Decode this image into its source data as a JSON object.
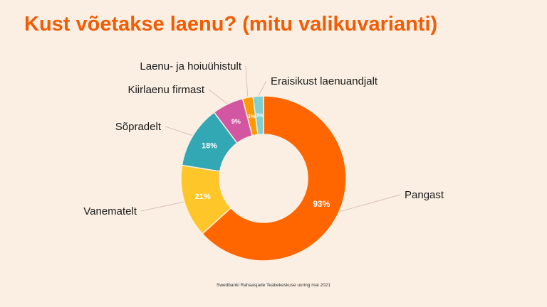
{
  "title": "Kust võetakse laenu? (mitu valikuvarianti)",
  "source": "Swedbanki Rahaasjade Teabekeskuse uuring mai 2021",
  "colors": {
    "background": "#fbefe3",
    "title": "#f25c05",
    "leader": "#d9c3b3"
  },
  "chart_data": {
    "type": "pie",
    "variant": "donut",
    "title": "Kust võetakse laenu? (mitu valikuvarianti)",
    "unit": "%",
    "slices": [
      {
        "label": "Pangast",
        "value": 93,
        "value_label": "93%",
        "color": "#ff6600"
      },
      {
        "label": "Vanematelt",
        "value": 21,
        "value_label": "21%",
        "color": "#ffc629"
      },
      {
        "label": "Sõpradelt",
        "value": 18,
        "value_label": "18%",
        "color": "#31a8b4"
      },
      {
        "label": "Kiirlaenu firmast",
        "value": 9,
        "value_label": "9%",
        "color": "#d256a1"
      },
      {
        "label": "Laenu- ja hoiuühistult",
        "value": 3,
        "value_label": "3%",
        "color": "#ff9900"
      },
      {
        "label": "Eraisikust laenuandjalt",
        "value": 3,
        "value_label": "3%",
        "color": "#7fd0d3"
      }
    ],
    "legend": "none"
  }
}
